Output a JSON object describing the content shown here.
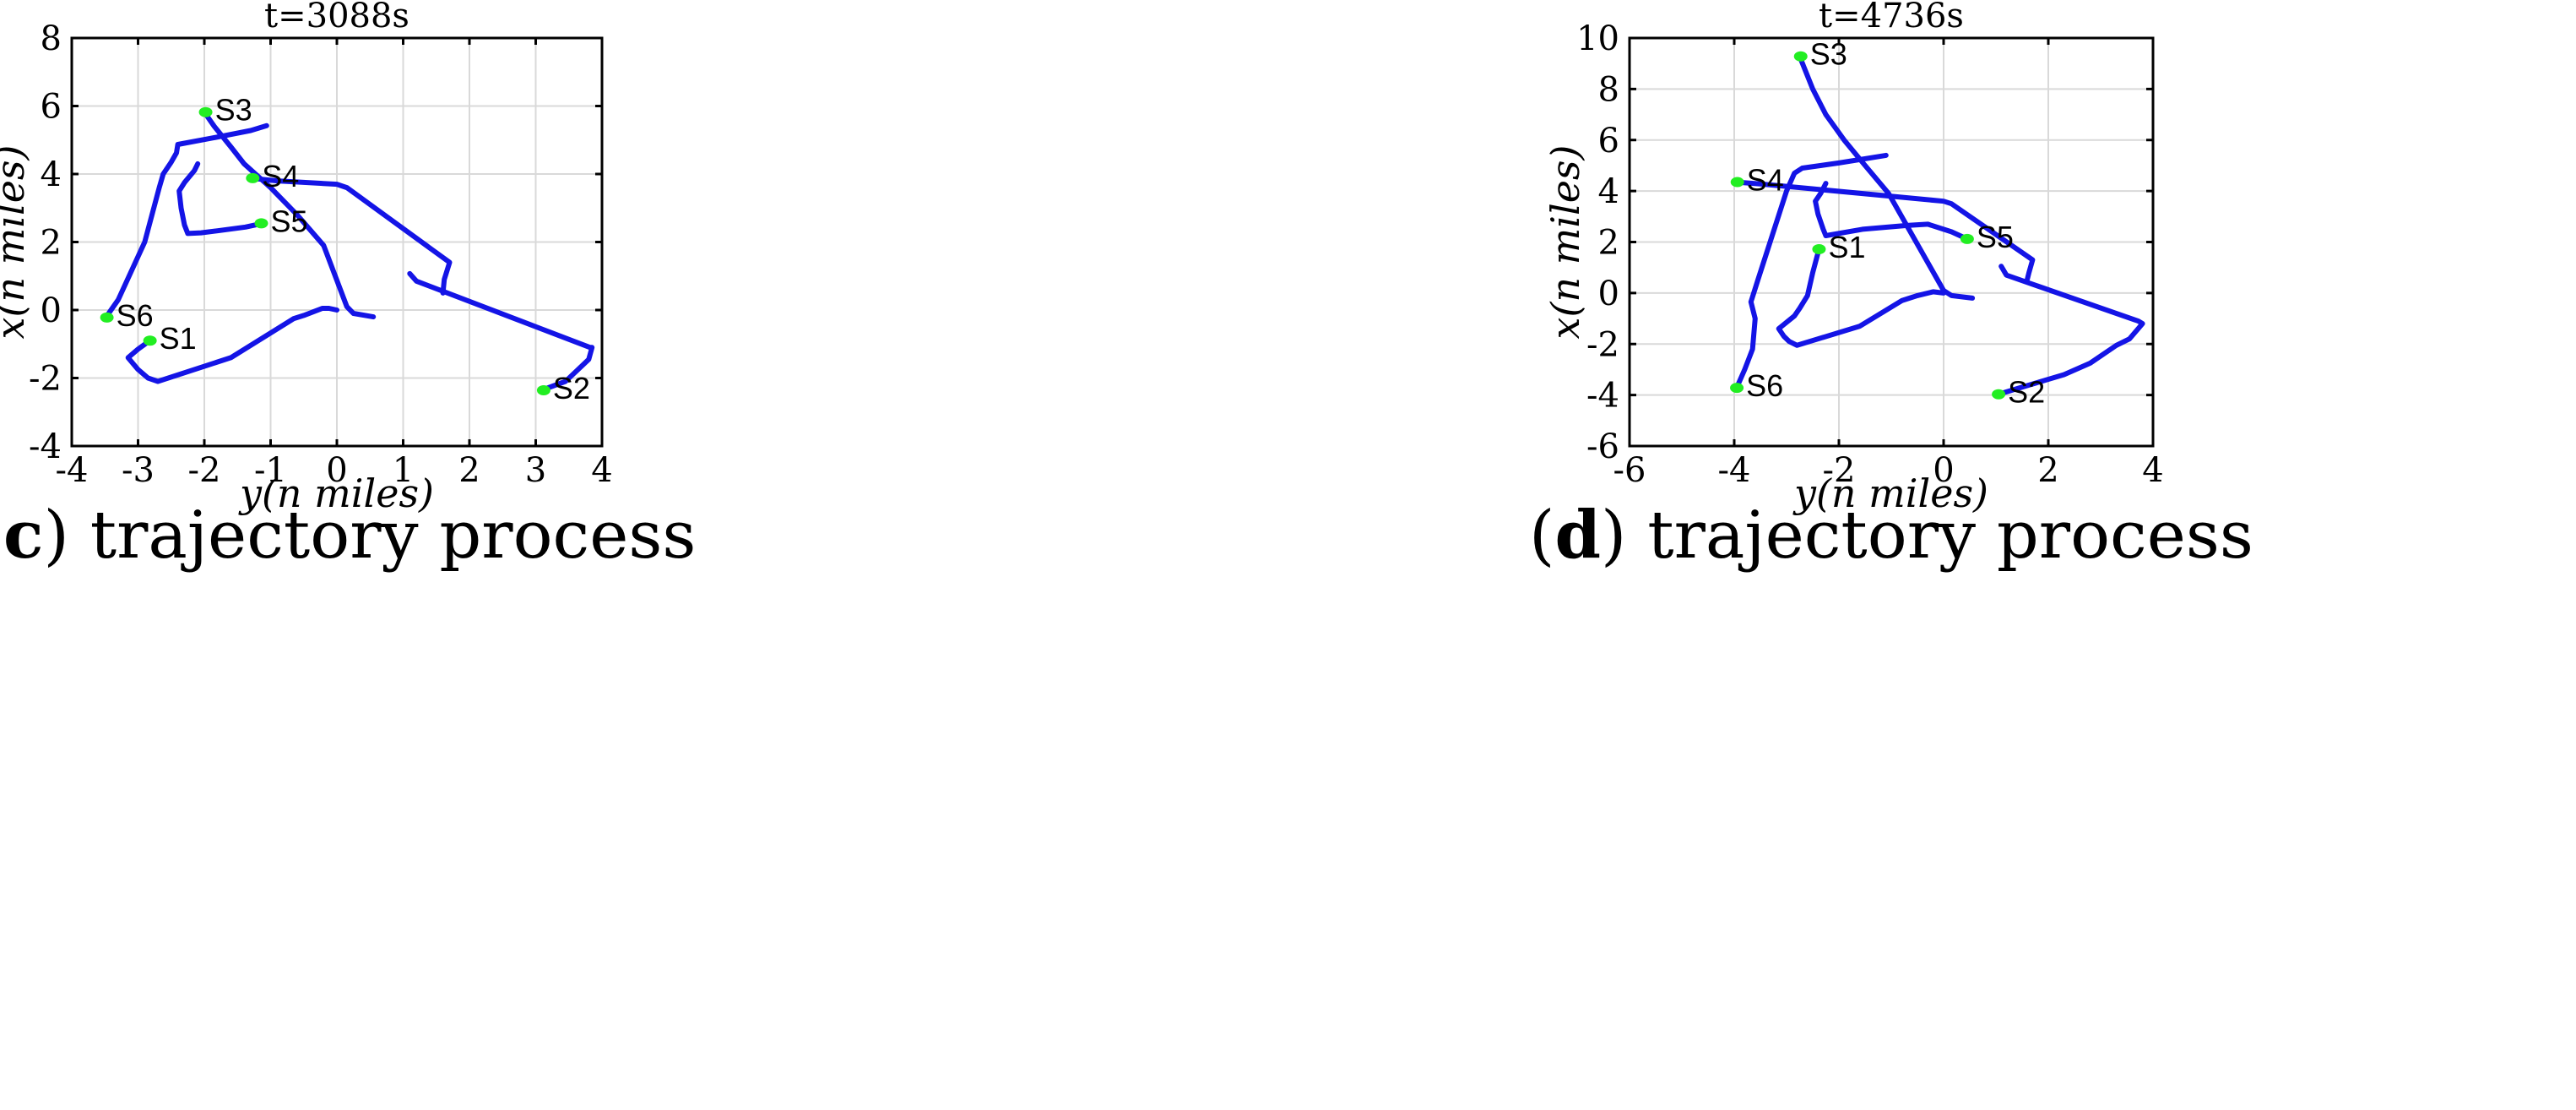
{
  "colors": {
    "trajectory": "#1414e6",
    "marker": "#22ee22"
  },
  "chart_data": [
    {
      "type": "line",
      "title": "t=3088s",
      "xlabel": "y(n miles)",
      "ylabel": "x(n miles)",
      "xlim": [
        -4,
        4
      ],
      "ylim": [
        -4,
        8
      ],
      "xticks": [
        -4,
        -3,
        -2,
        -1,
        0,
        1,
        2,
        3,
        4
      ],
      "yticks": [
        -4,
        -2,
        0,
        2,
        4,
        6,
        8
      ],
      "grid": true,
      "caption": {
        "letter": "c",
        "text": "trajectory process"
      },
      "series": [
        {
          "name": "S3 path",
          "points": [
            [
              -2.0,
              5.82
            ],
            [
              -1.85,
              5.4
            ],
            [
              -1.6,
              4.8
            ],
            [
              -1.4,
              4.3
            ],
            [
              -1.0,
              3.6
            ],
            [
              -0.6,
              2.8
            ],
            [
              -0.2,
              1.9
            ],
            [
              0.15,
              0.1
            ],
            [
              0.25,
              -0.1
            ],
            [
              0.55,
              -0.2
            ]
          ]
        },
        {
          "name": "S6 path",
          "points": [
            [
              -3.48,
              -0.2
            ],
            [
              -3.3,
              0.3
            ],
            [
              -2.9,
              2.0
            ],
            [
              -2.68,
              3.6
            ],
            [
              -2.62,
              4.0
            ],
            [
              -2.5,
              4.35
            ],
            [
              -2.42,
              4.62
            ],
            [
              -2.4,
              4.87
            ],
            [
              -1.9,
              5.05
            ],
            [
              -1.3,
              5.28
            ],
            [
              -1.06,
              5.42
            ]
          ]
        },
        {
          "name": "S5 path",
          "points": [
            [
              -1.12,
              2.55
            ],
            [
              -1.38,
              2.44
            ],
            [
              -1.8,
              2.33
            ],
            [
              -2.05,
              2.27
            ],
            [
              -2.25,
              2.25
            ],
            [
              -2.3,
              2.5
            ],
            [
              -2.35,
              3.0
            ],
            [
              -2.38,
              3.5
            ],
            [
              -2.3,
              3.75
            ],
            [
              -2.15,
              4.1
            ],
            [
              -2.1,
              4.3
            ]
          ]
        },
        {
          "name": "S4 path",
          "points": [
            [
              -1.32,
              3.88
            ],
            [
              -0.9,
              3.8
            ],
            [
              0.0,
              3.7
            ],
            [
              0.15,
              3.6
            ],
            [
              1.7,
              1.4
            ],
            [
              1.62,
              0.9
            ],
            [
              1.6,
              0.5
            ]
          ]
        },
        {
          "name": "S2 path",
          "points": [
            [
              3.1,
              -2.35
            ],
            [
              3.45,
              -2.1
            ],
            [
              3.8,
              -1.45
            ],
            [
              3.85,
              -1.1
            ],
            [
              3.82,
              -1.1
            ],
            [
              1.2,
              0.85
            ],
            [
              1.1,
              1.07
            ]
          ]
        },
        {
          "name": "S1 path",
          "points": [
            [
              -2.82,
              -0.9
            ],
            [
              -3.0,
              -1.15
            ],
            [
              -3.15,
              -1.4
            ],
            [
              -3.0,
              -1.75
            ],
            [
              -2.85,
              -2.0
            ],
            [
              -2.7,
              -2.1
            ],
            [
              -1.6,
              -1.4
            ],
            [
              -0.65,
              -0.25
            ],
            [
              -0.5,
              -0.16
            ],
            [
              -0.22,
              0.05
            ],
            [
              -0.12,
              0.05
            ],
            [
              0.0,
              0.0
            ]
          ]
        }
      ],
      "markers": [
        {
          "label": "S3",
          "x": -1.98,
          "y": 5.82
        },
        {
          "label": "S4",
          "x": -1.27,
          "y": 3.88
        },
        {
          "label": "S5",
          "x": -1.14,
          "y": 2.55
        },
        {
          "label": "S6",
          "x": -3.47,
          "y": -0.22
        },
        {
          "label": "S1",
          "x": -2.82,
          "y": -0.9
        },
        {
          "label": "S2",
          "x": 3.12,
          "y": -2.36
        }
      ]
    },
    {
      "type": "line",
      "title": "t=4736s",
      "xlabel": "y(n miles)",
      "ylabel": "x(n miles)",
      "xlim": [
        -6,
        4
      ],
      "ylim": [
        -6,
        10
      ],
      "xticks": [
        -6,
        -4,
        -2,
        0,
        2,
        4
      ],
      "yticks": [
        -6,
        -4,
        -2,
        0,
        2,
        4,
        6,
        8,
        10
      ],
      "grid": true,
      "caption": {
        "letter": "d",
        "text": "trajectory process"
      },
      "series": [
        {
          "name": "S3 path",
          "points": [
            [
              -2.75,
              9.28
            ],
            [
              -2.5,
              8.0
            ],
            [
              -2.25,
              7.0
            ],
            [
              -1.9,
              6.0
            ],
            [
              -1.5,
              5.0
            ],
            [
              -1.05,
              3.9
            ],
            [
              0.0,
              0.1
            ],
            [
              0.15,
              -0.1
            ],
            [
              0.55,
              -0.2
            ]
          ]
        },
        {
          "name": "S6 path",
          "points": [
            [
              -3.95,
              -3.7
            ],
            [
              -3.8,
              -3.0
            ],
            [
              -3.65,
              -2.2
            ],
            [
              -3.6,
              -1.0
            ],
            [
              -3.68,
              -0.35
            ],
            [
              -3.55,
              0.5
            ],
            [
              -3.0,
              4.0
            ],
            [
              -2.85,
              4.7
            ],
            [
              -2.7,
              4.9
            ],
            [
              -2.0,
              5.1
            ],
            [
              -1.1,
              5.4
            ]
          ]
        },
        {
          "name": "S4 path",
          "points": [
            [
              -3.95,
              4.35
            ],
            [
              -3.5,
              4.28
            ],
            [
              0.0,
              3.6
            ],
            [
              0.15,
              3.5
            ],
            [
              1.7,
              1.3
            ],
            [
              1.63,
              0.8
            ],
            [
              1.6,
              0.55
            ]
          ]
        },
        {
          "name": "S5 path",
          "points": [
            [
              0.45,
              2.12
            ],
            [
              0.15,
              2.4
            ],
            [
              -0.3,
              2.7
            ],
            [
              -0.7,
              2.65
            ],
            [
              -1.55,
              2.5
            ],
            [
              -2.25,
              2.25
            ],
            [
              -2.3,
              2.5
            ],
            [
              -2.4,
              3.1
            ],
            [
              -2.45,
              3.6
            ],
            [
              -2.35,
              3.9
            ],
            [
              -2.25,
              4.3
            ]
          ]
        },
        {
          "name": "S1 path",
          "points": [
            [
              -2.38,
              1.72
            ],
            [
              -2.5,
              0.8
            ],
            [
              -2.6,
              -0.1
            ],
            [
              -2.75,
              -0.6
            ],
            [
              -2.85,
              -0.9
            ],
            [
              -3.15,
              -1.4
            ],
            [
              -3.05,
              -1.7
            ],
            [
              -2.95,
              -1.9
            ],
            [
              -2.8,
              -2.05
            ],
            [
              -1.6,
              -1.3
            ],
            [
              -0.8,
              -0.3
            ],
            [
              -0.5,
              -0.1
            ],
            [
              -0.2,
              0.05
            ],
            [
              0.0,
              0.0
            ]
          ]
        },
        {
          "name": "S2 path",
          "points": [
            [
              1.05,
              -3.97
            ],
            [
              1.4,
              -3.75
            ],
            [
              2.3,
              -3.2
            ],
            [
              2.8,
              -2.75
            ],
            [
              3.3,
              -2.05
            ],
            [
              3.55,
              -1.8
            ],
            [
              3.8,
              -1.2
            ],
            [
              3.72,
              -1.1
            ],
            [
              1.2,
              0.7
            ],
            [
              1.1,
              1.05
            ]
          ]
        }
      ],
      "markers": [
        {
          "label": "S3",
          "x": -2.73,
          "y": 9.28
        },
        {
          "label": "S4",
          "x": -3.94,
          "y": 4.35
        },
        {
          "label": "S5",
          "x": 0.45,
          "y": 2.12
        },
        {
          "label": "S1",
          "x": -2.38,
          "y": 1.72
        },
        {
          "label": "S6",
          "x": -3.95,
          "y": -3.72
        },
        {
          "label": "S2",
          "x": 1.05,
          "y": -3.97
        }
      ]
    }
  ]
}
